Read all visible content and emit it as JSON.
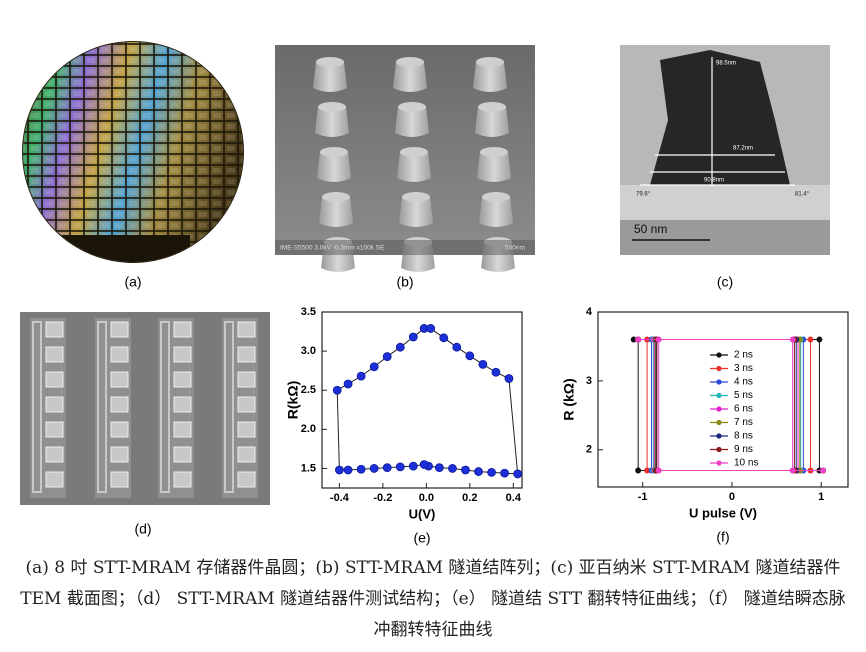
{
  "panels": [
    {
      "label": "(a)"
    },
    {
      "label": "(b)",
      "annotations": [
        "IME-S5500 3.0kV -0.3mm x100k SE",
        "500nm"
      ]
    },
    {
      "label": "(c)",
      "annotations": [
        "98.5nm",
        "87.2nm",
        "90.8nm",
        "79.6°",
        "81.4°",
        "50 nm"
      ]
    },
    {
      "label": "(d)"
    }
  ],
  "chart_data": [
    {
      "type": "line",
      "title": "(e)",
      "x_label": "U(V)",
      "y_label": "R(kΩ)",
      "xlim": [
        -0.48,
        0.44
      ],
      "ylim": [
        1.25,
        3.5
      ],
      "xticks": [
        -0.4,
        -0.2,
        {
          "value": 0,
          "label": "0.0"
        },
        0.2,
        0.4
      ],
      "yticks": [
        1.5,
        {
          "value": 2,
          "label": "2.0"
        },
        2.5,
        {
          "value": 3,
          "label": "3.0"
        },
        3.5
      ],
      "closed": true,
      "series": [
        {
          "color": "#1d2fd8",
          "line_color": "#222222",
          "x": [
            -0.41,
            -0.36,
            -0.3,
            -0.24,
            -0.18,
            -0.12,
            -0.06,
            -0.01,
            0.02,
            0.08,
            0.14,
            0.2,
            0.26,
            0.32,
            0.38,
            0.42,
            0.36,
            0.3,
            0.24,
            0.18,
            0.12,
            0.06,
            0.01,
            -0.01,
            -0.06,
            -0.12,
            -0.18,
            -0.24,
            -0.3,
            -0.36,
            -0.4
          ],
          "values": [
            2.5,
            2.58,
            2.68,
            2.8,
            2.93,
            3.05,
            3.18,
            3.29,
            3.29,
            3.17,
            3.05,
            2.94,
            2.83,
            2.73,
            2.65,
            1.43,
            1.44,
            1.45,
            1.46,
            1.48,
            1.5,
            1.51,
            1.53,
            1.55,
            1.53,
            1.52,
            1.51,
            1.5,
            1.49,
            1.48,
            1.48
          ]
        }
      ]
    },
    {
      "type": "line",
      "title": "(f)",
      "x_label": "U pulse (V)",
      "y_label": "R (kΩ)",
      "xlim": [
        -1.5,
        1.3
      ],
      "ylim": [
        1.46,
        4
      ],
      "xticks": [
        -1,
        0,
        1
      ],
      "yticks": [
        2,
        3,
        4
      ],
      "legend": "right",
      "series": [
        {
          "name": "2 ns",
          "color": "#111111",
          "x": [
            -1.1,
            0.98,
            0.98,
            1.02,
            -1.05,
            -1.05
          ],
          "values": [
            3.6,
            3.6,
            1.7,
            1.7,
            1.7,
            3.6
          ]
        },
        {
          "name": "3 ns",
          "color": "#e8302a",
          "x": [
            -1.05,
            0.88,
            0.88,
            1.02,
            -0.95,
            -0.95
          ],
          "values": [
            3.6,
            3.6,
            1.7,
            1.7,
            1.7,
            3.6
          ]
        },
        {
          "name": "4 ns",
          "color": "#2a48d8",
          "x": [
            -1.05,
            0.8,
            0.8,
            1.02,
            -0.9,
            -0.9
          ],
          "values": [
            3.6,
            3.6,
            1.7,
            1.7,
            1.7,
            3.6
          ]
        },
        {
          "name": "5 ns",
          "color": "#1fb5b5",
          "x": [
            -1.05,
            0.77,
            0.77,
            1.02,
            -0.88,
            -0.88
          ],
          "values": [
            3.6,
            3.6,
            1.7,
            1.7,
            1.7,
            3.6
          ]
        },
        {
          "name": "6 ns",
          "color": "#e020d0",
          "x": [
            -1.05,
            0.74,
            0.74,
            1.02,
            -0.87,
            -0.87
          ],
          "values": [
            3.6,
            3.6,
            1.7,
            1.7,
            1.7,
            3.6
          ]
        },
        {
          "name": "7 ns",
          "color": "#8a8a10",
          "x": [
            -1.05,
            0.76,
            0.76,
            1.02,
            -0.86,
            -0.86
          ],
          "values": [
            3.6,
            3.6,
            1.7,
            1.7,
            1.7,
            3.6
          ]
        },
        {
          "name": "8 ns",
          "color": "#1a2a7a",
          "x": [
            -1.05,
            0.72,
            0.72,
            1.02,
            -0.85,
            -0.85
          ],
          "values": [
            3.6,
            3.6,
            1.7,
            1.7,
            1.7,
            3.6
          ]
        },
        {
          "name": "9 ns",
          "color": "#8a1a1a",
          "x": [
            -1.05,
            0.7,
            0.7,
            1.02,
            -0.84,
            -0.84
          ],
          "values": [
            3.6,
            3.6,
            1.7,
            1.7,
            1.7,
            3.6
          ]
        },
        {
          "name": "10 ns",
          "color": "#f040c8",
          "x": [
            -1.05,
            0.68,
            0.68,
            1.02,
            -0.82,
            -0.82
          ],
          "values": [
            3.6,
            3.6,
            1.7,
            1.7,
            1.7,
            3.6
          ]
        }
      ]
    }
  ],
  "caption": "(a) 8 吋 STT-MRAM 存储器件晶圆；(b) STT-MRAM 隧道结阵列；(c) 亚百纳米 STT-MRAM 隧道结器件 TEM 截面图；（d） STT-MRAM 隧道结器件测试结构；（e） 隧道结 STT 翻转特征曲线；（f） 隧道结瞬态脉冲翻转特征曲线"
}
